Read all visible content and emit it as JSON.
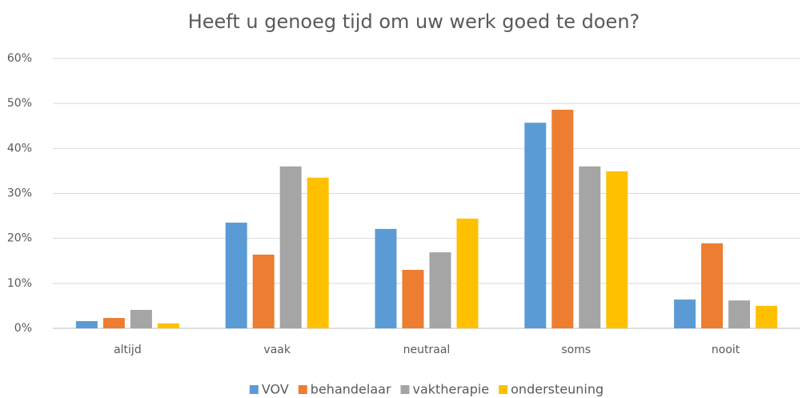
{
  "chart_data": {
    "type": "bar",
    "title": "Heeft u genoeg tijd om uw werk goed te doen?",
    "categories": [
      "altijd",
      "vaak",
      "neutraal",
      "soms",
      "nooit"
    ],
    "series": [
      {
        "name": "VOV",
        "color": "#5b9bd5",
        "values": [
          1.6,
          23.5,
          22.1,
          45.7,
          6.4
        ]
      },
      {
        "name": "behandelaar",
        "color": "#ed7d31",
        "values": [
          2.3,
          16.4,
          13.0,
          48.6,
          18.9
        ]
      },
      {
        "name": "vaktherapie",
        "color": "#a5a5a5",
        "values": [
          4.1,
          36.0,
          16.9,
          36.0,
          6.2
        ]
      },
      {
        "name": "ondersteuning",
        "color": "#ffc000",
        "values": [
          1.1,
          33.5,
          24.4,
          34.9,
          5.0
        ]
      }
    ],
    "ylim": [
      0,
      60
    ],
    "yticks": [
      {
        "value": 0,
        "label": "0%"
      },
      {
        "value": 10,
        "label": "10%"
      },
      {
        "value": 20,
        "label": "20%"
      },
      {
        "value": 30,
        "label": "30%"
      },
      {
        "value": 40,
        "label": "40%"
      },
      {
        "value": 50,
        "label": "50%"
      },
      {
        "value": 60,
        "label": "60%"
      }
    ],
    "grid": true,
    "legend": "bottom"
  }
}
